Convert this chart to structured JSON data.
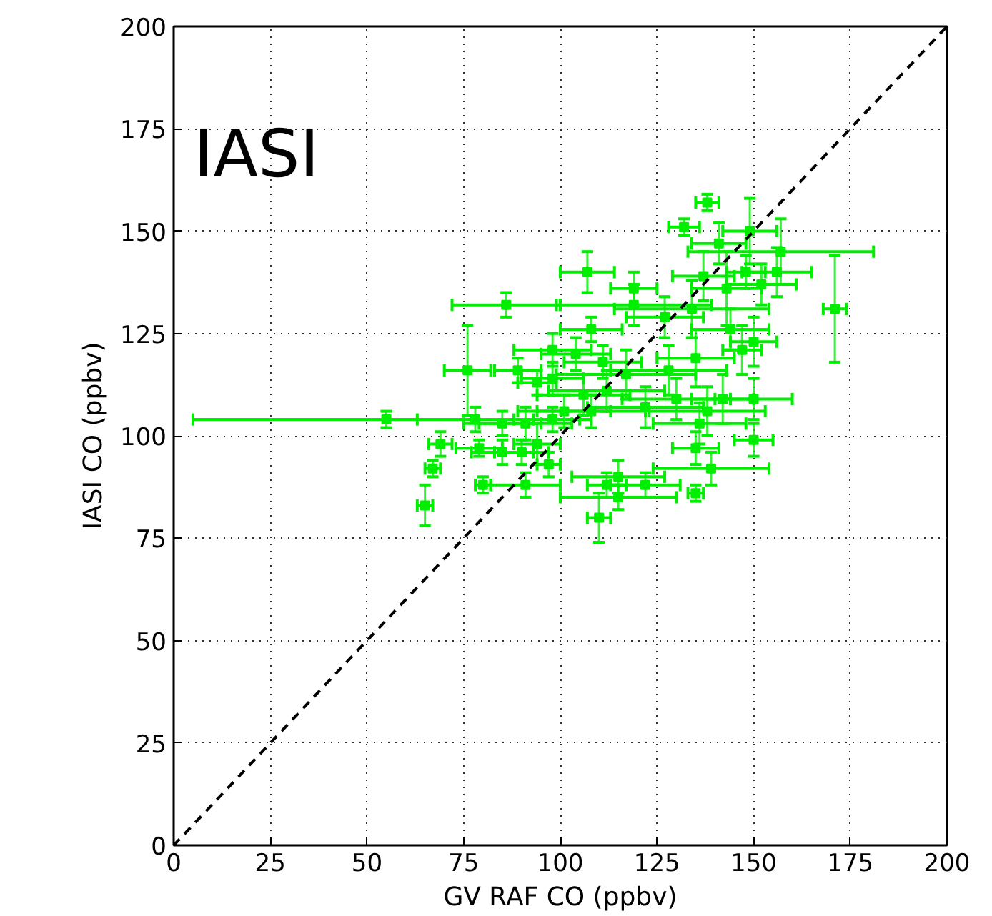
{
  "chart_data": {
    "type": "scatter",
    "xlabel": "GV RAF CO (ppbv)",
    "ylabel": "IASI CO (ppbv)",
    "annotations": [
      "IASI"
    ],
    "xlim": [
      0,
      200
    ],
    "ylim": [
      0,
      200
    ],
    "xticks": [
      0,
      25,
      50,
      75,
      100,
      125,
      150,
      175,
      200
    ],
    "yticks": [
      0,
      25,
      50,
      75,
      100,
      125,
      150,
      175,
      200
    ],
    "grid": true,
    "marker": "square",
    "series": [
      {
        "color": "#00ee00",
        "x": [
          65,
          67,
          76,
          86,
          107,
          55,
          138,
          132,
          149,
          157,
          171,
          156,
          152,
          98,
          119,
          144,
          150,
          150,
          150,
          135,
          139,
          69,
          80,
          91,
          97,
          89,
          94,
          98,
          78,
          85,
          91,
          79,
          85,
          90,
          94,
          98,
          101,
          108,
          104,
          111,
          106,
          112,
          108,
          112,
          110,
          115,
          115,
          122,
          135,
          136,
          138,
          122,
          130,
          142,
          117,
          128,
          135,
          147,
          127,
          119,
          137,
          143,
          134,
          148,
          141
        ],
        "values": [
          83,
          92,
          116,
          132,
          140,
          104,
          157,
          151,
          150,
          145,
          131,
          140,
          137,
          121,
          136,
          126,
          123,
          109,
          99,
          86,
          92,
          98,
          88,
          88,
          93,
          116,
          113,
          114,
          104,
          103,
          103,
          97,
          96,
          96,
          98,
          104,
          106,
          126,
          120,
          118,
          110,
          111,
          106,
          88,
          80,
          85,
          90,
          88,
          97,
          103,
          106,
          107,
          109,
          109,
          115,
          116,
          119,
          121,
          129,
          132,
          139,
          136,
          131,
          140,
          147
        ],
        "xerrors": [
          2,
          2,
          6,
          14,
          7,
          50,
          3,
          4,
          7,
          24,
          3,
          9,
          9,
          10,
          6,
          10,
          6,
          10,
          5,
          2,
          15,
          3,
          2,
          9,
          3,
          6,
          5,
          8,
          15,
          10,
          12,
          6,
          8,
          7,
          6,
          10,
          12,
          8,
          9,
          10,
          12,
          15,
          14,
          5,
          3,
          15,
          12,
          9,
          6,
          12,
          15,
          15,
          14,
          8,
          18,
          15,
          10,
          5,
          10,
          20,
          8,
          9,
          20,
          5,
          7
        ],
        "errors": [
          5,
          2,
          11,
          3,
          5,
          2,
          2,
          2,
          8,
          8,
          13,
          6,
          5,
          4,
          4,
          5,
          6,
          5,
          4,
          2,
          4,
          3,
          2,
          3,
          3,
          3,
          3,
          4,
          3,
          3,
          4,
          2,
          3,
          3,
          5,
          3,
          4,
          3,
          4,
          4,
          5,
          5,
          4,
          3,
          6,
          3,
          4,
          3,
          4,
          5,
          6,
          5,
          5,
          6,
          6,
          6,
          7,
          6,
          5,
          5,
          6,
          9,
          7,
          4,
          5
        ]
      },
      {
        "type": "line",
        "color": "#000000",
        "line_style": "dashed",
        "marker": "none",
        "x": [
          0,
          200
        ],
        "values": [
          0,
          200
        ]
      }
    ]
  }
}
